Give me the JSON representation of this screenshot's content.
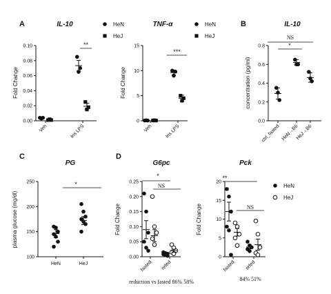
{
  "chart_data": [
    {
      "panel_label": "A",
      "type": "scatter",
      "title": "IL-10",
      "ylabel": "Fold Change",
      "categories": [
        "Veh",
        "Ins LPS"
      ],
      "ylim": [
        0,
        0.1
      ],
      "yticks": [
        "0.00",
        "0.02",
        "0.04",
        "0.06",
        "0.08",
        "0.10"
      ],
      "series": [
        {
          "name": "HeN",
          "marker": "circle-filled",
          "points": [
            [
              0.004,
              0.003,
              0.004
            ],
            [
              0.085,
              0.065,
              0.07
            ]
          ],
          "mean": [
            0.0037,
            0.0733
          ],
          "sem": [
            0.0003,
            0.007
          ]
        },
        {
          "name": "HeJ",
          "marker": "square-filled",
          "points": [
            [
              0.001,
              0.002,
              0.001
            ],
            [
              0.025,
              0.015,
              0.018
            ]
          ],
          "mean": [
            0.0013,
            0.0193
          ],
          "sem": [
            0.0003,
            0.004
          ]
        }
      ],
      "significance": [
        {
          "text": "**"
        }
      ],
      "legend": "top-right"
    },
    {
      "panel_label": "",
      "type": "scatter",
      "title": "TNF-α",
      "ylabel": "Fold Change",
      "categories": [
        "Veh",
        "Ins LPS"
      ],
      "ylim": [
        0,
        15
      ],
      "yticks": [
        "0",
        "5",
        "10",
        "15"
      ],
      "series": [
        {
          "name": "HeN",
          "marker": "circle-filled",
          "points": [
            [
              0.05,
              0.1,
              0.05
            ],
            [
              10.0,
              9.0,
              9.8
            ]
          ],
          "mean": [
            0.07,
            9.6
          ],
          "sem": [
            0.03,
            0.5
          ]
        },
        {
          "name": "HeJ",
          "marker": "square-filled",
          "points": [
            [
              0.05,
              0.1,
              0.05
            ],
            [
              5.0,
              4.0,
              4.5
            ]
          ],
          "mean": [
            0.07,
            4.5
          ],
          "sem": [
            0.03,
            0.6
          ]
        }
      ],
      "significance": [
        {
          "text": "***"
        }
      ],
      "legend": "top-right"
    },
    {
      "panel_label": "B",
      "type": "scatter",
      "title": "IL-10",
      "ylabel": "concentration (pg/ml)",
      "categories": [
        "ctrl_fasted",
        "HeN→B6",
        "HeJ→B6"
      ],
      "ylim": [
        0,
        0.8
      ],
      "yticks": [
        "0.0",
        "0.2",
        "0.4",
        "0.6",
        "0.8"
      ],
      "series": [
        {
          "name": "",
          "marker": "circle-filled",
          "points": [
            [
              0.35,
              0.3,
              0.22
            ],
            [
              0.65,
              0.6,
              0.6
            ],
            [
              0.52,
              0.45,
              0.42
            ]
          ],
          "mean": [
            0.29,
            0.62,
            0.46
          ],
          "sem": [
            0.06,
            0.03,
            0.05
          ]
        }
      ],
      "significance": [
        {
          "text": "NS"
        },
        {
          "text": "*"
        }
      ]
    },
    {
      "panel_label": "C",
      "type": "scatter",
      "title": "PG",
      "ylabel": "plasma glucose (mg/dl)",
      "categories": [
        "HeN",
        "HeJ"
      ],
      "ylim": [
        100,
        250
      ],
      "yticks": [
        "100",
        "150",
        "200",
        "250"
      ],
      "series": [
        {
          "name": "",
          "marker": "circle-filled",
          "points": [
            [
              160,
              158,
              150,
              145,
              140,
              130,
              120
            ],
            [
              205,
              190,
              180,
              175,
              170,
              165,
              150
            ]
          ],
          "mean": [
            146,
            172
          ],
          "sem": [
            8,
            8
          ]
        }
      ],
      "significance": [
        {
          "text": "*"
        }
      ]
    },
    {
      "panel_label": "D",
      "type": "scatter",
      "title": "G6pc",
      "ylabel": "Fold Change",
      "categories": [
        "fasted",
        "refed"
      ],
      "ylim": [
        0,
        0.25
      ],
      "yticks": [
        "0.00",
        "0.05",
        "0.10",
        "0.15",
        "0.20",
        "0.25"
      ],
      "series": [
        {
          "name": "HeN",
          "marker": "circle-filled",
          "points": [
            [
              0.21,
              0.15,
              0.08,
              0.05,
              0.03,
              0.02
            ],
            [
              0.015,
              0.012,
              0.01,
              0.008,
              0.005,
              0.003
            ]
          ],
          "mean": [
            0.09,
            0.01
          ],
          "sem": [
            0.03,
            0.002
          ]
        },
        {
          "name": "HeJ",
          "marker": "circle-open",
          "points": [
            [
              0.2,
              0.1,
              0.08,
              0.06,
              0.04
            ],
            [
              0.04,
              0.03,
              0.02,
              0.015,
              0.01
            ]
          ],
          "mean": [
            0.07,
            0.02
          ],
          "sem": [
            0.02,
            0.005
          ]
        }
      ],
      "significance": [
        {
          "text": "*"
        },
        {
          "text": "NS"
        }
      ],
      "footer": "reduction vs  fasted 86% 58%"
    },
    {
      "panel_label": "",
      "type": "scatter",
      "title": "Pck",
      "ylabel": "Fold Change",
      "categories": [
        "fasted",
        "refed"
      ],
      "ylim": [
        0,
        20
      ],
      "yticks": [
        "0",
        "5",
        "10",
        "15",
        "20"
      ],
      "series": [
        {
          "name": "HeN",
          "marker": "circle-filled",
          "points": [
            [
              18,
              16,
              12,
              8,
              7,
              0.5
            ],
            [
              4,
              3,
              2.5,
              2,
              1.5
            ]
          ],
          "mean": [
            12,
            2.6
          ],
          "sem": [
            2.5,
            0.5
          ]
        },
        {
          "name": "HeJ",
          "marker": "circle-open",
          "points": [
            [
              9,
              8,
              6,
              5,
              3
            ],
            [
              9.5,
              6,
              2.5,
              1,
              0.5
            ]
          ],
          "mean": [
            6.5,
            3.2
          ],
          "sem": [
            1.0,
            1.5
          ]
        }
      ],
      "significance": [
        {
          "text": "**"
        },
        {
          "text": "NS"
        }
      ],
      "footer": "84% 51%",
      "legend": "right"
    }
  ]
}
